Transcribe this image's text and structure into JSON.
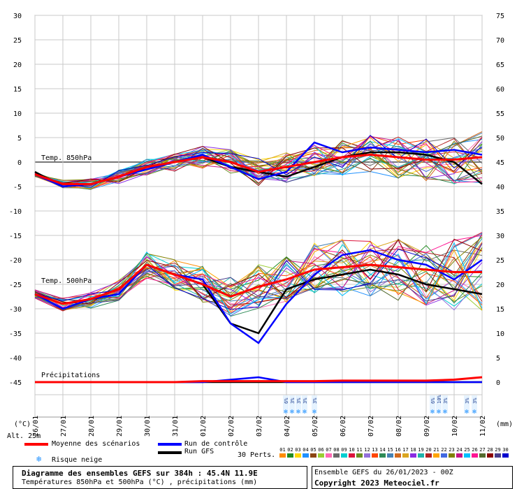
{
  "chart_data": {
    "type": "line",
    "title": "Diagramme des ensembles GEFS sur 384h : 45.4N 11.9E",
    "subtitle": "Températures 850hPa et 500hPa (°C) , précipitations (mm)",
    "ensemble_label": "Ensemble GEFS du 26/01/2023 - 00Z",
    "copyright": "Copyright 2023 Meteociel.fr",
    "left_axis_unit": "(°C)",
    "right_axis_unit": "(mm)",
    "altitude_label": "Alt. 25m",
    "left_ticks": [
      30,
      25,
      20,
      15,
      10,
      5,
      0,
      -5,
      -10,
      -15,
      -20,
      -25,
      -30,
      -35,
      -40,
      -45
    ],
    "right_ticks": [
      75,
      70,
      65,
      60,
      55,
      50,
      45,
      40,
      35,
      30,
      25,
      20,
      15,
      10,
      5,
      0
    ],
    "x_dates": [
      "26/01",
      "27/01",
      "28/01",
      "29/01",
      "30/01",
      "31/01",
      "01/02",
      "02/02",
      "03/02",
      "04/02",
      "05/02",
      "06/02",
      "07/02",
      "08/02",
      "09/02",
      "10/02",
      "11/02"
    ],
    "band_labels": {
      "t850": "Temp. 850hPa",
      "t500": "Temp. 500hPa",
      "precip": "Précipitations"
    },
    "snow_risk_labels": [
      "6%",
      "3%",
      "3%",
      "3%",
      "3%",
      "6%",
      "10%",
      "3%",
      "3%",
      "3%"
    ],
    "legend": {
      "mean": "Moyenne des scénarios",
      "control": "Run de contrôle",
      "gfs": "Run GFS",
      "snow": "Risque neige",
      "perts_label": "30 Perts."
    },
    "perturbation_ids": [
      "01",
      "02",
      "03",
      "04",
      "05",
      "06",
      "07",
      "08",
      "09",
      "10",
      "11",
      "12",
      "13",
      "14",
      "15",
      "16",
      "17",
      "18",
      "19",
      "20",
      "21",
      "22",
      "23",
      "24",
      "25",
      "26",
      "27",
      "28",
      "29",
      "30"
    ],
    "perturbation_colors": [
      "#ff8c00",
      "#228b22",
      "#ffd700",
      "#1e90ff",
      "#8b4513",
      "#9acd32",
      "#ff69b4",
      "#696969",
      "#00ced1",
      "#dc143c",
      "#6b8e23",
      "#9370db",
      "#ff4500",
      "#2e8b57",
      "#4682b4",
      "#d2691e",
      "#daa520",
      "#8a2be2",
      "#20b2aa",
      "#b22222",
      "#ffa500",
      "#4169e1",
      "#808000",
      "#c71585",
      "#00bfff",
      "#ff1493",
      "#556b2f",
      "#8b0000",
      "#483d8b",
      "#0000cd"
    ],
    "series": [
      {
        "name": "Moyenne des scénarios",
        "color": "#ff0000",
        "t850": [
          -2.5,
          -4.5,
          -4.5,
          -3,
          -1,
          0,
          1,
          0,
          -2,
          -1,
          0,
          1,
          1.5,
          1,
          0.5,
          0.5,
          1
        ],
        "t500": [
          -27,
          -29,
          -28,
          -26,
          -21,
          -23,
          -25,
          -27.5,
          -25.5,
          -24,
          -22,
          -21.5,
          -21,
          -21.5,
          -22,
          -22.5,
          -22.5
        ],
        "precip": [
          0,
          0,
          0,
          0,
          0,
          0,
          0.2,
          0.2,
          0.2,
          0.2,
          0.2,
          0.3,
          0.3,
          0.3,
          0.3,
          0.5,
          1
        ]
      },
      {
        "name": "Run de contrôle",
        "color": "#0000ff",
        "t850": [
          -2.5,
          -5,
          -4.5,
          -3,
          -1.5,
          0,
          1.5,
          -1,
          -3.5,
          -2,
          4,
          2,
          3,
          2.5,
          2,
          2.5,
          1.5
        ],
        "t500": [
          -27,
          -30,
          -28,
          -27,
          -21,
          -23,
          -24,
          -33,
          -37,
          -29,
          -23,
          -19,
          -18,
          -20,
          -21,
          -24,
          -20
        ],
        "precip": [
          0,
          0,
          0,
          0,
          0,
          0,
          0,
          0.5,
          1,
          0,
          0,
          0,
          0,
          0,
          0,
          0,
          0
        ]
      },
      {
        "name": "Run GFS",
        "color": "#000000",
        "t850": [
          -2,
          -5,
          -4.5,
          -3,
          -1,
          0,
          1,
          -1,
          -2,
          -3,
          -1,
          1,
          2,
          2,
          1.5,
          0,
          -4.5
        ],
        "t500": [
          -27,
          -29,
          -28,
          -27,
          -21,
          -23,
          -25,
          -33,
          -35,
          -26,
          -24,
          -23,
          -22,
          -23,
          -25,
          -26,
          -27
        ],
        "precip": [
          0,
          0,
          0,
          0,
          0,
          0,
          0,
          0,
          0,
          0,
          0,
          0,
          0,
          0,
          0,
          0,
          0
        ]
      }
    ]
  }
}
